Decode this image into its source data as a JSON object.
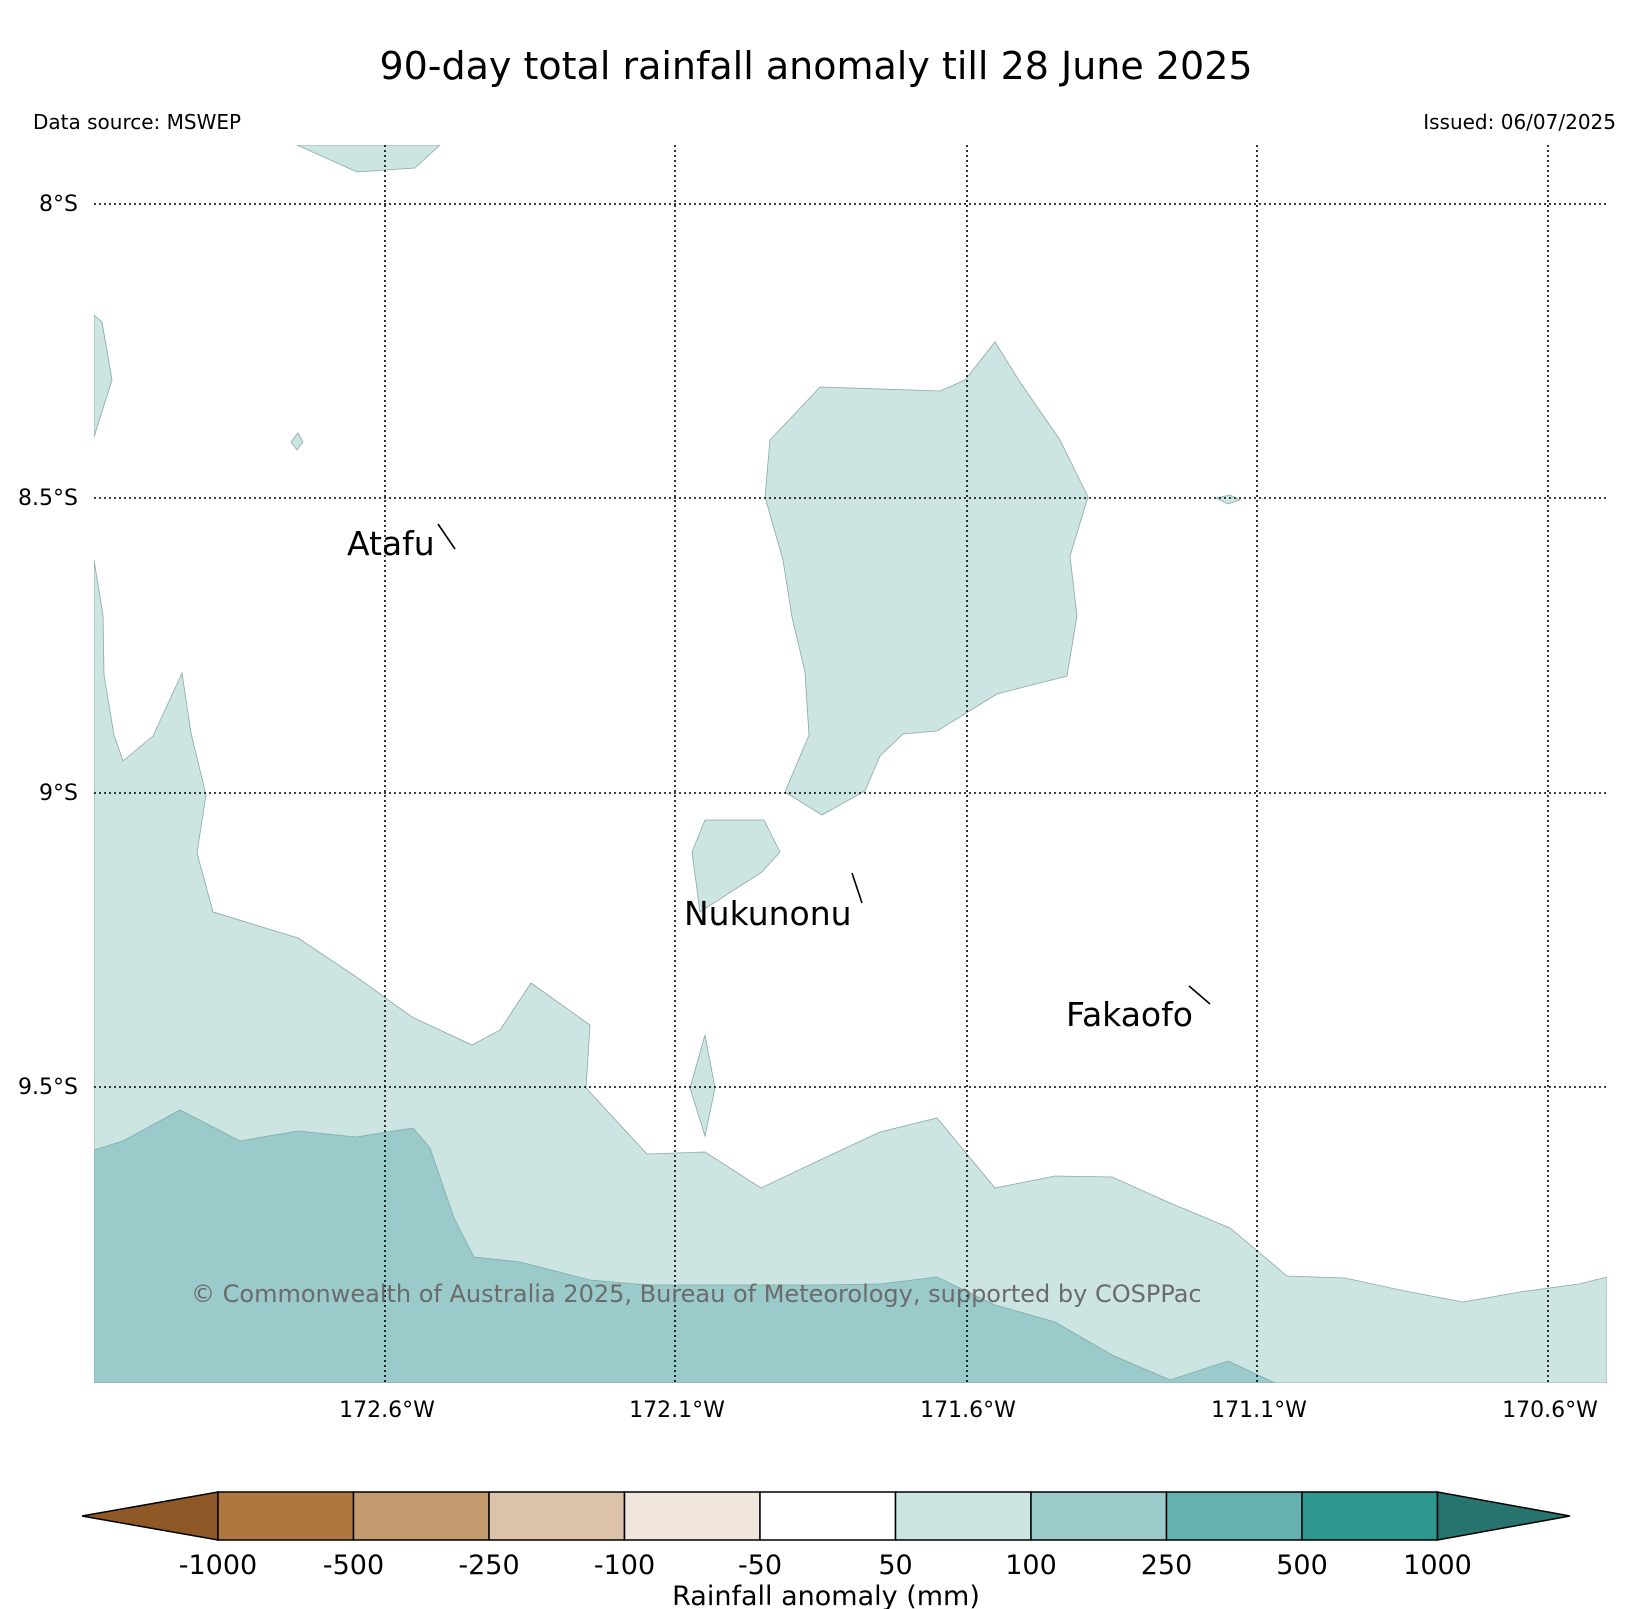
{
  "title": "90-day total rainfall anomaly till 28 June 2025",
  "data_source": "Data source: MSWEP",
  "issued": "Issued: 06/07/2025",
  "copyright": "© Commonwealth of Australia 2025, Bureau of Meteorology, supported by COSPPac",
  "map": {
    "lat_labels": [
      "8°S",
      "8.5°S",
      "9°S",
      "9.5°S"
    ],
    "lon_labels": [
      "172.6°W",
      "172.1°W",
      "171.6°W",
      "171.1°W",
      "170.6°W"
    ],
    "places": [
      {
        "name": "Atafu"
      },
      {
        "name": "Nukunonu"
      },
      {
        "name": "Fakaofo"
      }
    ]
  },
  "legend": {
    "title": "Rainfall anomaly (mm)",
    "labels": [
      "-1000",
      "-500",
      "-250",
      "-100",
      "-50",
      "50",
      "100",
      "250",
      "500",
      "1000"
    ],
    "colors": [
      "#8f5927",
      "#af763e",
      "#c49a6f",
      "#dbc2a9",
      "#f1e6dc",
      "#ffffff",
      "#cce5e3",
      "#9acbca",
      "#65b1b1",
      "#2f9792",
      "#27746f"
    ]
  }
}
